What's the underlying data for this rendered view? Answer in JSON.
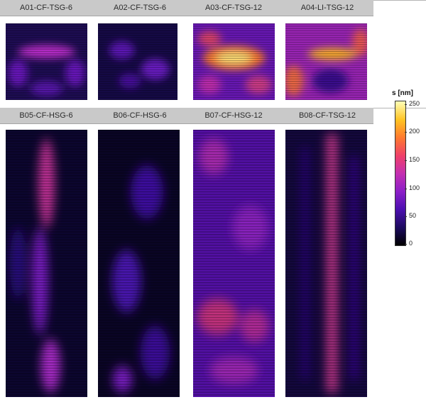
{
  "row_a": {
    "labels": [
      "A01-CF-TSG-6",
      "A02-CF-TSG-6",
      "A03-CF-TSG-12",
      "A04-LI-TSG-12"
    ]
  },
  "row_b": {
    "labels": [
      "B05-CF-HSG-6",
      "B06-CF-HSG-6",
      "B07-CF-HSG-12",
      "B08-CF-TSG-12"
    ]
  },
  "colorbar": {
    "title": "s [nm]",
    "ticks": [
      "250",
      "200",
      "150",
      "100",
      "50",
      "0"
    ],
    "range": [
      0,
      250
    ],
    "colors": [
      "#000000",
      "#1b0a5c",
      "#4c0fb0",
      "#8a1fc8",
      "#c42fb0",
      "#ee3f6a",
      "#ff7a2e",
      "#ffc222",
      "#ffffb8"
    ]
  }
}
